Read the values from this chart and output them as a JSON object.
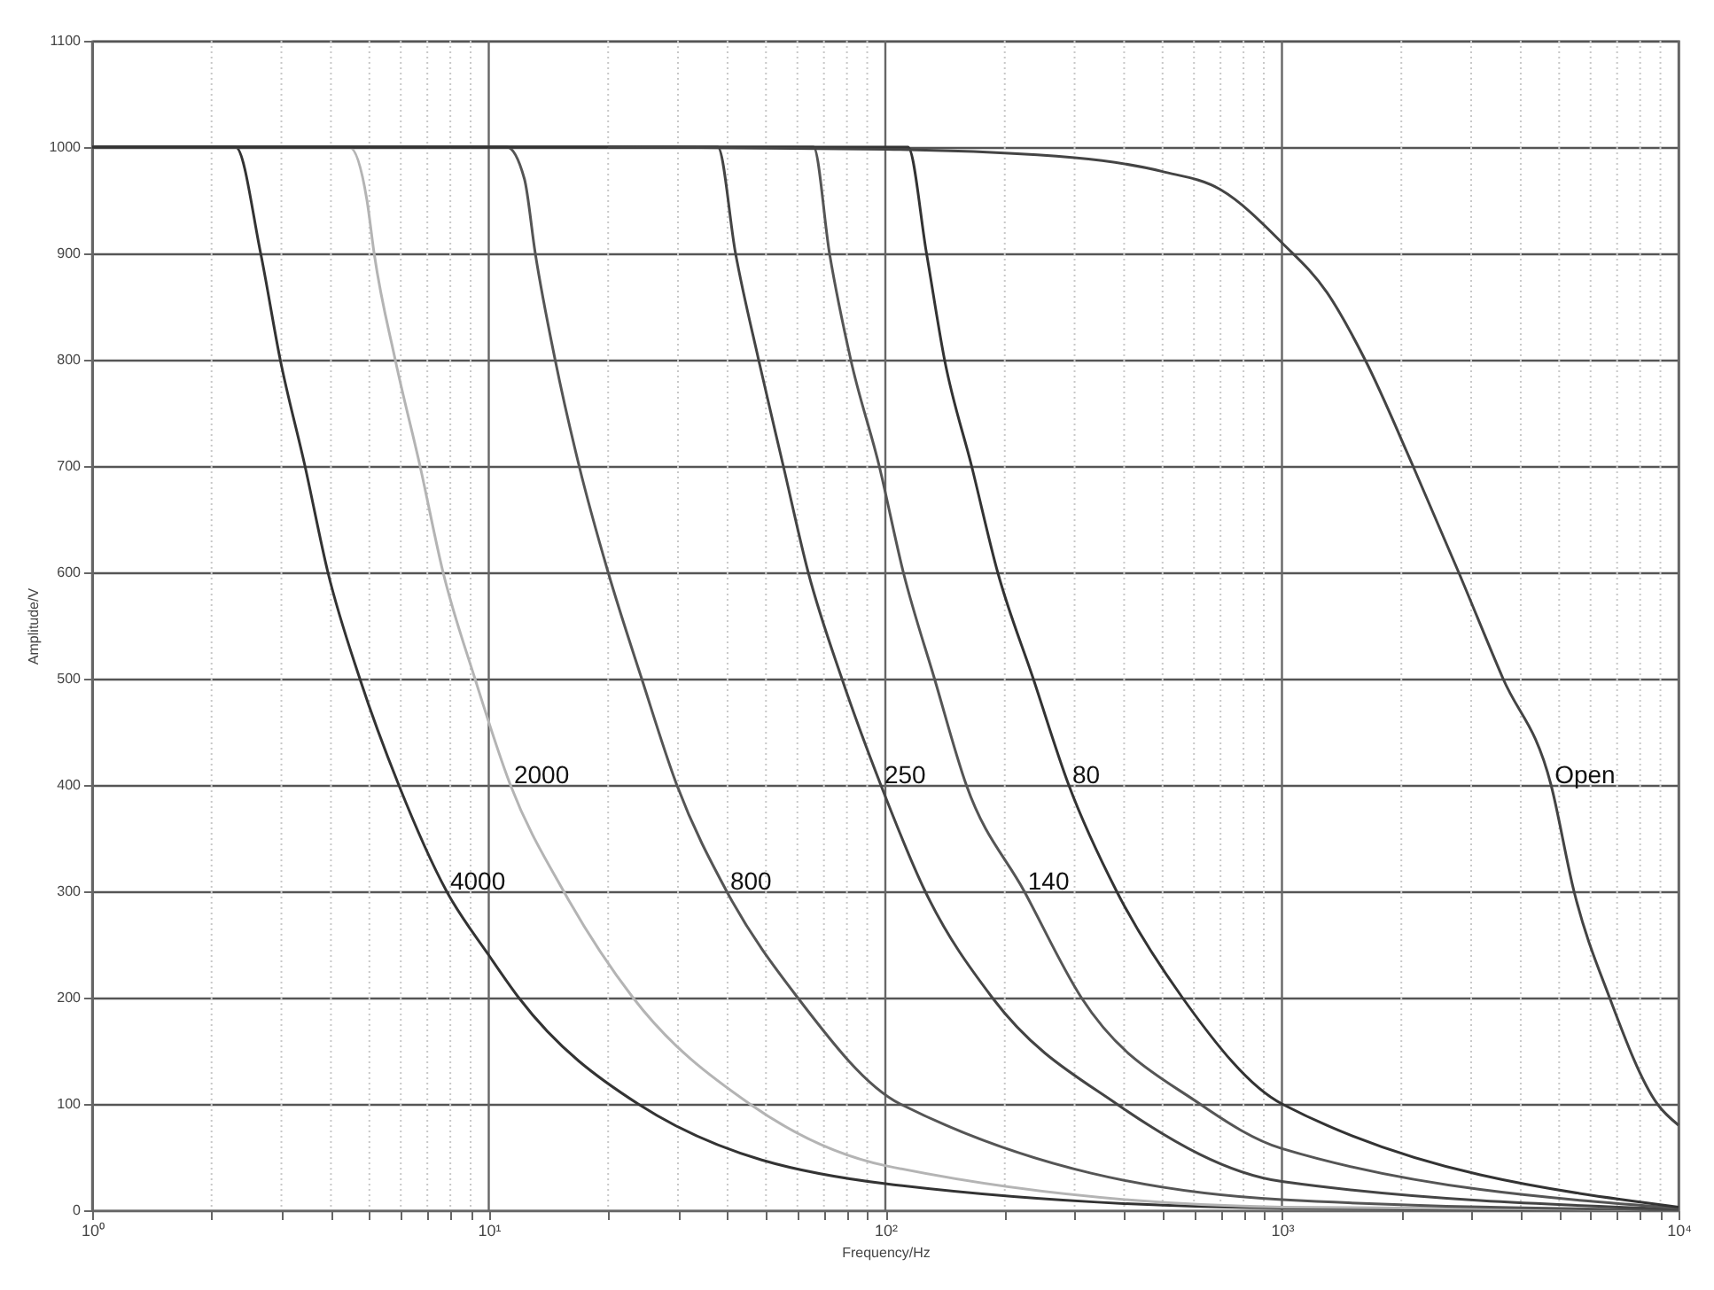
{
  "chart_data": {
    "type": "line",
    "xlabel": "Frequency/Hz",
    "ylabel": "Amplitude/V",
    "log": "x",
    "grid": true,
    "legend": false,
    "xlim": [
      1,
      10000
    ],
    "ylim": [
      0,
      1100
    ],
    "xticks": [
      {
        "value": 1,
        "label": "10⁰"
      },
      {
        "value": 2,
        "label": null
      },
      {
        "value": 3,
        "label": null
      },
      {
        "value": 4,
        "label": null
      },
      {
        "value": 5,
        "label": null
      },
      {
        "value": 6,
        "label": null
      },
      {
        "value": 7,
        "label": null
      },
      {
        "value": 8,
        "label": null
      },
      {
        "value": 9,
        "label": null
      },
      {
        "value": 10,
        "label": "10¹"
      },
      {
        "value": 20,
        "label": null
      },
      {
        "value": 30,
        "label": null
      },
      {
        "value": 40,
        "label": null
      },
      {
        "value": 50,
        "label": null
      },
      {
        "value": 60,
        "label": null
      },
      {
        "value": 70,
        "label": null
      },
      {
        "value": 80,
        "label": null
      },
      {
        "value": 90,
        "label": null
      },
      {
        "value": 100,
        "label": "10²"
      },
      {
        "value": 200,
        "label": null
      },
      {
        "value": 300,
        "label": null
      },
      {
        "value": 400,
        "label": null
      },
      {
        "value": 500,
        "label": null
      },
      {
        "value": 600,
        "label": null
      },
      {
        "value": 700,
        "label": null
      },
      {
        "value": 800,
        "label": null
      },
      {
        "value": 900,
        "label": null
      },
      {
        "value": 1000,
        "label": "10³"
      },
      {
        "value": 2000,
        "label": null
      },
      {
        "value": 3000,
        "label": null
      },
      {
        "value": 4000,
        "label": null
      },
      {
        "value": 5000,
        "label": null
      },
      {
        "value": 6000,
        "label": null
      },
      {
        "value": 7000,
        "label": null
      },
      {
        "value": 8000,
        "label": null
      },
      {
        "value": 9000,
        "label": null
      },
      {
        "value": 10000,
        "label": "10⁴"
      }
    ],
    "yticks": [
      0,
      100,
      200,
      300,
      400,
      500,
      600,
      700,
      800,
      900,
      1000,
      1100
    ],
    "series": [
      {
        "name": "4000",
        "color": "#333333",
        "x": [
          1,
          2.3,
          2.66,
          2.98,
          3.44,
          3.93,
          4.73,
          5.93,
          7.83,
          10,
          11.9,
          23.8,
          100,
          1000,
          10000
        ],
        "values": [
          1000,
          1000,
          900,
          800,
          700,
          600,
          500,
          400,
          300,
          240,
          200,
          100,
          25,
          2,
          0
        ]
      },
      {
        "name": "2000",
        "color": "#b4b4b4",
        "x": [
          1,
          4.45,
          4.93,
          5.14,
          5.81,
          6.71,
          7.67,
          9.23,
          11.34,
          15.45,
          23.1,
          45.5,
          100,
          1000,
          10000
        ],
        "values": [
          1000,
          1000,
          950,
          900,
          800,
          700,
          600,
          500,
          400,
          300,
          200,
          100,
          42,
          3,
          0
        ]
      },
      {
        "name": "800",
        "color": "#555555",
        "x": [
          1,
          11.1,
          12.3,
          13.1,
          14.7,
          16.9,
          20,
          24.3,
          29.8,
          39.8,
          60.1,
          109,
          1000,
          10000
        ],
        "values": [
          1000,
          1000,
          970,
          900,
          800,
          700,
          600,
          500,
          400,
          300,
          200,
          100,
          10,
          0
        ]
      },
      {
        "name": "250",
        "color": "#444444",
        "x": [
          1,
          37.8,
          41.9,
          47.9,
          55.3,
          63.9,
          77.7,
          97.4,
          126,
          186,
          383,
          1000,
          10000
        ],
        "values": [
          1000,
          1000,
          900,
          800,
          700,
          600,
          500,
          400,
          300,
          200,
          100,
          27,
          1
        ]
      },
      {
        "name": "140",
        "color": "#555555",
        "x": [
          1,
          65.9,
          72.3,
          81.8,
          96.5,
          111,
          133,
          160,
          224,
          312,
          621,
          1000,
          10000
        ],
        "values": [
          1000,
          1000,
          900,
          800,
          700,
          600,
          500,
          400,
          300,
          200,
          100,
          58,
          2
        ]
      },
      {
        "name": "80",
        "color": "#333333",
        "x": [
          1,
          114,
          127,
          141,
          165,
          192,
          236,
          290,
          383,
          561,
          1000,
          10000
        ],
        "values": [
          1000,
          1000,
          900,
          800,
          700,
          600,
          500,
          400,
          300,
          200,
          100,
          3
        ]
      },
      {
        "name": "Open",
        "color": "#444444",
        "x": [
          20,
          100,
          300,
          500,
          700,
          1000,
          1300,
          1620,
          2140,
          2790,
          3610,
          4770,
          5450,
          6700,
          8840,
          10000
        ],
        "values": [
          1000,
          998,
          990,
          977,
          960,
          910,
          863,
          800,
          700,
          600,
          500,
          400,
          300,
          200,
          100,
          80
        ]
      }
    ]
  }
}
